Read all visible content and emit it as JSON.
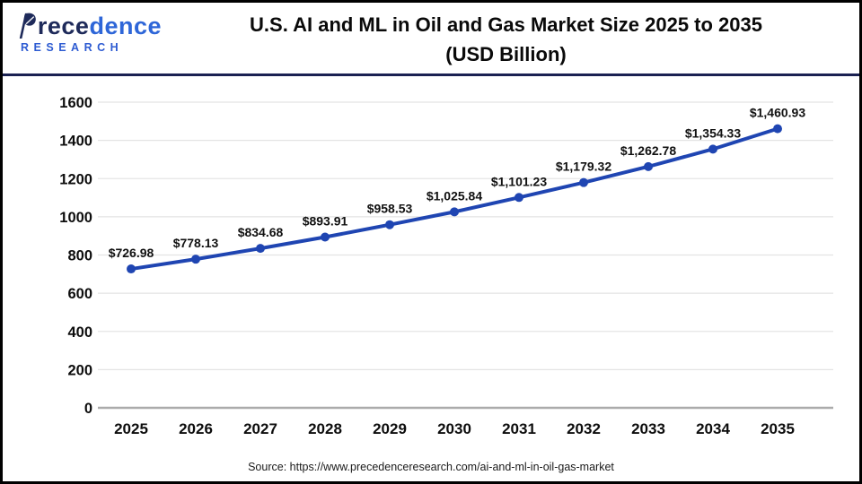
{
  "header": {
    "logo": {
      "brand_full": "Precedence",
      "brand_part1": "rece",
      "brand_part2": "dence",
      "subbrand": "RESEARCH",
      "navy_color": "#1e2a5a",
      "blue_color": "#2e66d8"
    },
    "title": "U.S. AI and ML in Oil and Gas Market Size 2025 to 2035\n(USD Billion)",
    "divider_color": "#1a2152"
  },
  "chart_data": {
    "type": "line",
    "title": "U.S. AI and ML in Oil and Gas Market Size 2025 to 2035 (USD Billion)",
    "unit": "USD Billion",
    "categories": [
      2025,
      2026,
      2027,
      2028,
      2029,
      2030,
      2031,
      2032,
      2033,
      2034,
      2035
    ],
    "values": [
      726.98,
      778.13,
      834.68,
      893.91,
      958.53,
      1025.84,
      1101.23,
      1179.32,
      1262.78,
      1354.33,
      1460.93
    ],
    "labels": [
      "$726.98",
      "$778.13",
      "$834.68",
      "$893.91",
      "$958.53",
      "$1,025.84",
      "$1,101.23",
      "$1,179.32",
      "$1,262.78",
      "$1,354.33",
      "$1,460.93"
    ],
    "ylim": [
      0,
      1600
    ],
    "yticks": [
      0,
      200,
      400,
      600,
      800,
      1000,
      1200,
      1400,
      1600
    ],
    "grid": true,
    "legend": false,
    "line_color": "#1f45b2",
    "marker_color": "#1f45b2",
    "grid_color": "#e4e4e4",
    "axis_color": "#ababab"
  },
  "footer": {
    "source": "Source: https://www.precedenceresearch.com/ai-and-ml-in-oil-gas-market"
  }
}
